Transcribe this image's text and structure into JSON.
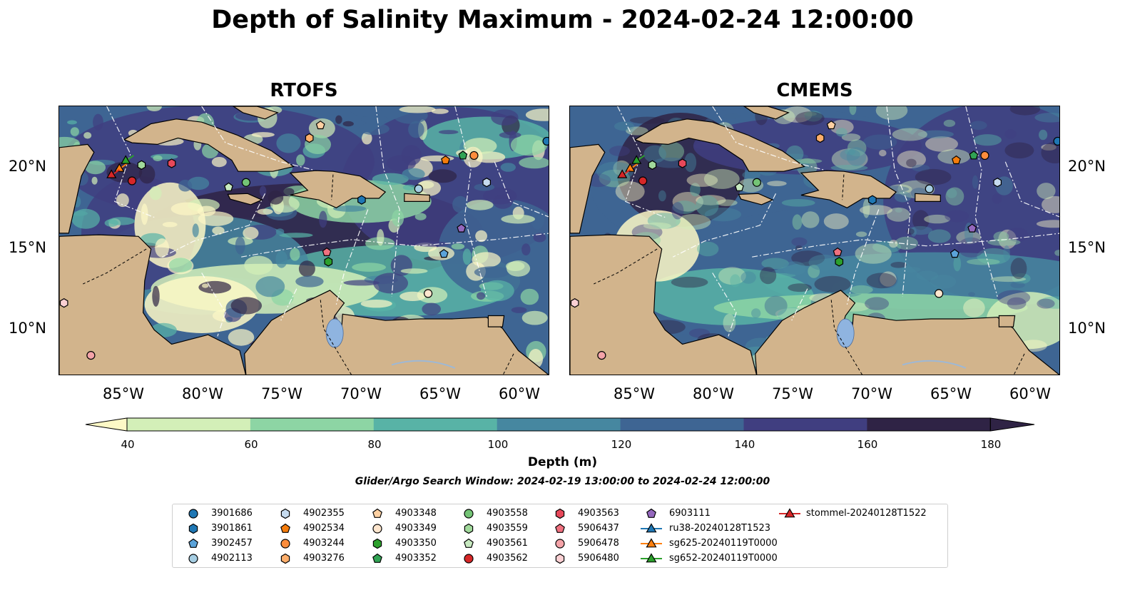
{
  "title": "Depth of Salinity Maximum - 2024-02-24 12:00:00",
  "panels": [
    {
      "title": "RTOFS"
    },
    {
      "title": "CMEMS"
    }
  ],
  "lat_labels": [
    "20°N",
    "15°N",
    "10°N"
  ],
  "lon_labels": [
    "85°W",
    "80°W",
    "75°W",
    "70°W",
    "65°W",
    "60°W"
  ],
  "map_extent": {
    "lon": [
      -89,
      -58
    ],
    "lat": [
      7,
      24
    ]
  },
  "colorbar": {
    "label": "Depth (m)",
    "ticks": [
      "40",
      "60",
      "80",
      "100",
      "120",
      "140",
      "160",
      "180"
    ],
    "colors": [
      "#fdf8c6",
      "#d3efb8",
      "#8dd5a4",
      "#58b3a6",
      "#4687a0",
      "#3e6593",
      "#403e80",
      "#2f2345"
    ],
    "extend": "both"
  },
  "colors": {
    "land": "#d2b48c",
    "lakes": "#8fb4e0",
    "rivers": "#9db8d6"
  },
  "search_window": "Glider/Argo Search Window: 2024-02-19 13:00:00 to 2024-02-24 12:00:00",
  "legend": [
    {
      "label": "3901686",
      "marker": "circle",
      "color": "#1f77b4",
      "lon": -58.2,
      "lat": 21.8
    },
    {
      "label": "3901861",
      "marker": "hexagon",
      "color": "#1f77b4",
      "lon": -69.9,
      "lat": 18.1
    },
    {
      "label": "3902457",
      "marker": "pentagon",
      "color": "#5ba3d9",
      "lon": -64.7,
      "lat": 14.7
    },
    {
      "label": "4902113",
      "marker": "circle",
      "color": "#a6cee3",
      "lon": -66.3,
      "lat": 18.8
    },
    {
      "label": "4902355",
      "marker": "hexagon",
      "color": "#c6dbef",
      "lon": -62.0,
      "lat": 19.2
    },
    {
      "label": "4902534",
      "marker": "pentagon",
      "color": "#f57c0c",
      "lon": -64.6,
      "lat": 20.6
    },
    {
      "label": "4903244",
      "marker": "circle",
      "color": "#fd8d3c",
      "lon": -62.8,
      "lat": 20.9
    },
    {
      "label": "4903276",
      "marker": "hexagon",
      "color": "#fdae6b",
      "lon": -73.2,
      "lat": 22.0
    },
    {
      "label": "4903348",
      "marker": "pentagon",
      "color": "#fdd0a2",
      "lon": -72.5,
      "lat": 22.8
    },
    {
      "label": "4903349",
      "marker": "circle",
      "color": "#fee6ce",
      "lon": -65.7,
      "lat": 12.2
    },
    {
      "label": "4903350",
      "marker": "hexagon",
      "color": "#2ca02c",
      "lon": -72.0,
      "lat": 14.2
    },
    {
      "label": "4903352",
      "marker": "pentagon",
      "color": "#31a354",
      "lon": -63.5,
      "lat": 20.9
    },
    {
      "label": "4903558",
      "marker": "circle",
      "color": "#74c476",
      "lon": -77.2,
      "lat": 19.2
    },
    {
      "label": "4903559",
      "marker": "hexagon",
      "color": "#a1d99b",
      "lon": -83.8,
      "lat": 20.3
    },
    {
      "label": "4903561",
      "marker": "pentagon",
      "color": "#c7e9c0",
      "lon": -78.3,
      "lat": 18.9
    },
    {
      "label": "4903562",
      "marker": "circle",
      "color": "#d62728",
      "lon": -84.4,
      "lat": 19.3
    },
    {
      "label": "4903563",
      "marker": "hexagon",
      "color": "#e7485a",
      "lon": -81.9,
      "lat": 20.4
    },
    {
      "label": "5906437",
      "marker": "pentagon",
      "color": "#f0717f",
      "lon": -72.1,
      "lat": 14.8
    },
    {
      "label": "5906478",
      "marker": "circle",
      "color": "#f4a3a8",
      "lon": -87.0,
      "lat": 8.3
    },
    {
      "label": "5906480",
      "marker": "hexagon",
      "color": "#fbd0d3",
      "lon": -88.7,
      "lat": 11.6
    },
    {
      "label": "6903111",
      "marker": "pentagon",
      "color": "#9467bd",
      "lon": -63.6,
      "lat": 16.3
    },
    {
      "label": "ru38-20240128T1523",
      "marker": "triangle-line",
      "color": "#1f77b4",
      "lon": null,
      "lat": null
    },
    {
      "label": "sg625-20240119T0000",
      "marker": "triangle-line",
      "color": "#ff7f0e",
      "lon": -85.2,
      "lat": 20.1
    },
    {
      "label": "sg652-20240119T0000",
      "marker": "triangle-line",
      "color": "#2ca02c",
      "lon": -84.8,
      "lat": 20.6
    },
    {
      "label": "stommel-20240128T1522",
      "marker": "triangle-line",
      "color": "#d62728",
      "lon": -85.7,
      "lat": 19.7
    }
  ]
}
